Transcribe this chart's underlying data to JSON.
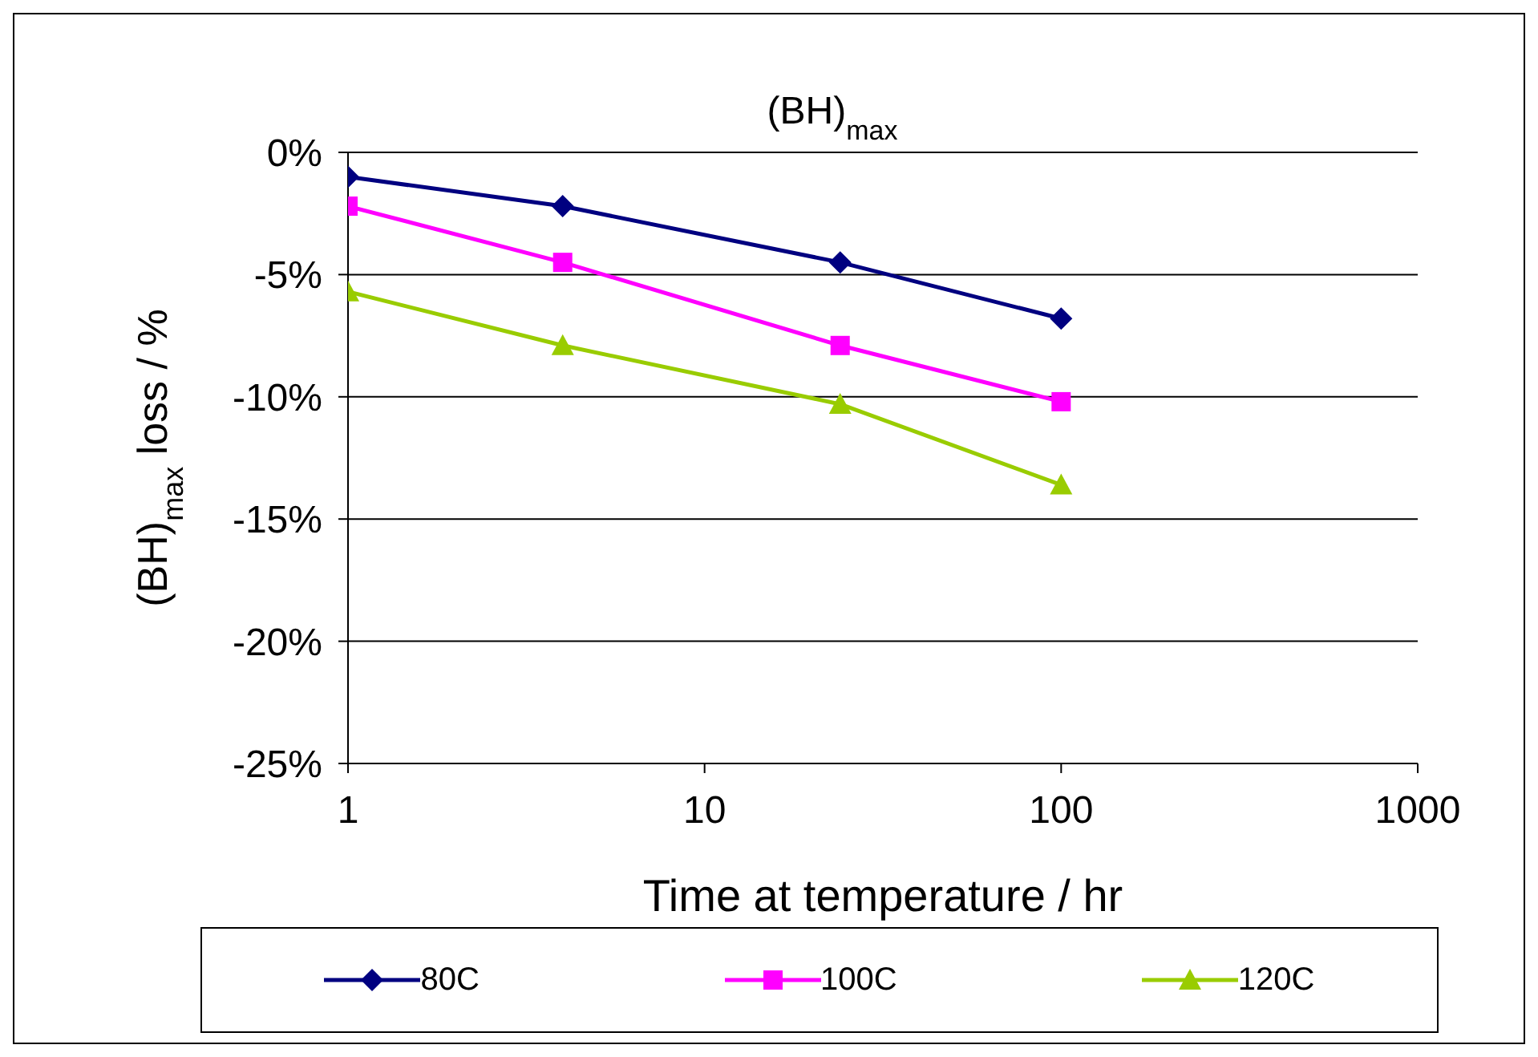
{
  "chart_data": {
    "type": "line",
    "title": "(BH)$_{max}$",
    "xlabel": "Time at temperature / hr",
    "ylabel": "(BH)$_{max}$ loss / %",
    "log": "x",
    "xlim": [
      1,
      1000
    ],
    "xticks": [
      1,
      10,
      100,
      1000
    ],
    "ylim": [
      -25,
      0
    ],
    "yticks": [
      {
        "value": -25,
        "label": "-25%"
      },
      {
        "value": -20,
        "label": "-20%"
      },
      {
        "value": -15,
        "label": "-15%"
      },
      {
        "value": -10,
        "label": "-10%"
      },
      {
        "value": -5,
        "label": "-5%"
      },
      {
        "value": 0,
        "label": "0%"
      }
    ],
    "grid": "y",
    "legend": "bottom",
    "x": [
      1,
      4,
      24,
      100
    ],
    "series": [
      {
        "name": "80C",
        "color": "#000080",
        "marker": "diamond",
        "values": [
          -1.0,
          -2.2,
          -4.5,
          -6.8
        ]
      },
      {
        "name": "100C",
        "color": "#ff00ff",
        "marker": "square",
        "values": [
          -2.2,
          -4.5,
          -7.9,
          -10.2
        ]
      },
      {
        "name": "120C",
        "color": "#99cc00",
        "marker": "triangle",
        "values": [
          -5.7,
          -7.9,
          -10.3,
          -13.6
        ]
      }
    ]
  }
}
